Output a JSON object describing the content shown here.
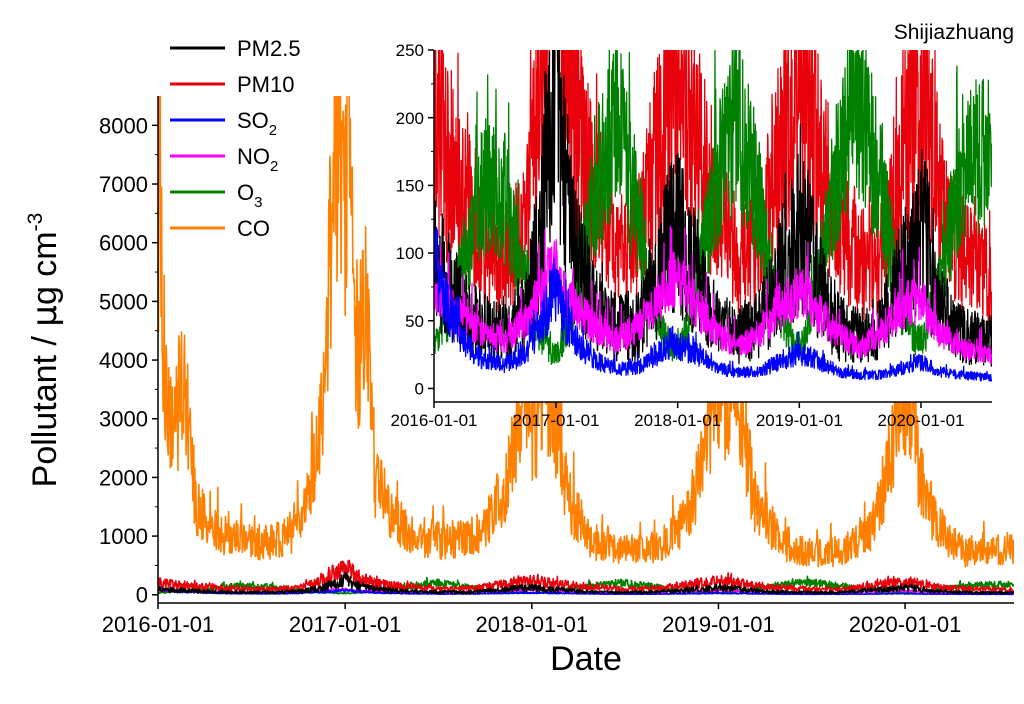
{
  "chart_data": [
    {
      "type": "line",
      "title": "Shijiazhuang",
      "xlabel": "Date",
      "ylabel": {
        "main": "Pollutant  / ",
        "mu": "μ",
        "unit": "g cm",
        "sup": "-3"
      },
      "xlim": [
        "2016-01-01",
        "2020-08-01"
      ],
      "ylim": [
        0,
        8500
      ],
      "xticks": [
        "2016-01-01",
        "2017-01-01",
        "2018-01-01",
        "2019-01-01",
        "2020-01-01"
      ],
      "yticks": [
        0,
        1000,
        2000,
        3000,
        4000,
        5000,
        6000,
        7000,
        8000
      ],
      "grid": false,
      "legend": "top-left",
      "series": [
        {
          "name": "PM2.5",
          "label": {
            "base": "PM2.5",
            "sub": ""
          },
          "color": "#000000",
          "points": [
            [
              "2016-01-01",
              95
            ],
            [
              "2016-02-15",
              75
            ],
            [
              "2016-04-01",
              55
            ],
            [
              "2016-06-01",
              45
            ],
            [
              "2016-08-01",
              40
            ],
            [
              "2016-10-01",
              55
            ],
            [
              "2016-11-15",
              110
            ],
            [
              "2016-12-20",
              230
            ],
            [
              "2017-01-01",
              260
            ],
            [
              "2017-01-20",
              180
            ],
            [
              "2017-03-01",
              95
            ],
            [
              "2017-05-01",
              60
            ],
            [
              "2017-07-01",
              45
            ],
            [
              "2017-09-01",
              45
            ],
            [
              "2017-11-01",
              80
            ],
            [
              "2017-12-15",
              120
            ],
            [
              "2018-01-15",
              110
            ],
            [
              "2018-03-01",
              80
            ],
            [
              "2018-05-01",
              50
            ],
            [
              "2018-07-01",
              40
            ],
            [
              "2018-09-01",
              45
            ],
            [
              "2018-11-01",
              85
            ],
            [
              "2018-12-20",
              110
            ],
            [
              "2019-01-15",
              120
            ],
            [
              "2019-03-01",
              75
            ],
            [
              "2019-05-01",
              45
            ],
            [
              "2019-07-01",
              40
            ],
            [
              "2019-09-01",
              45
            ],
            [
              "2019-11-01",
              80
            ],
            [
              "2019-12-20",
              105
            ],
            [
              "2020-01-15",
              110
            ],
            [
              "2020-03-01",
              60
            ],
            [
              "2020-05-01",
              40
            ],
            [
              "2020-07-31",
              35
            ]
          ]
        },
        {
          "name": "PM10",
          "label": {
            "base": "PM10",
            "sub": ""
          },
          "color": "#e8000b",
          "points": [
            [
              "2016-01-01",
              210
            ],
            [
              "2016-02-15",
              160
            ],
            [
              "2016-04-01",
              140
            ],
            [
              "2016-06-01",
              110
            ],
            [
              "2016-08-01",
              90
            ],
            [
              "2016-10-01",
              120
            ],
            [
              "2016-11-15",
              220
            ],
            [
              "2016-12-20",
              420
            ],
            [
              "2017-01-01",
              480
            ],
            [
              "2017-01-20",
              320
            ],
            [
              "2017-03-01",
              190
            ],
            [
              "2017-05-01",
              140
            ],
            [
              "2017-07-01",
              100
            ],
            [
              "2017-09-01",
              110
            ],
            [
              "2017-11-01",
              170
            ],
            [
              "2017-12-15",
              240
            ],
            [
              "2018-01-15",
              220
            ],
            [
              "2018-03-01",
              180
            ],
            [
              "2018-05-01",
              130
            ],
            [
              "2018-07-01",
              95
            ],
            [
              "2018-09-01",
              100
            ],
            [
              "2018-11-01",
              170
            ],
            [
              "2018-12-20",
              220
            ],
            [
              "2019-01-15",
              230
            ],
            [
              "2019-03-01",
              170
            ],
            [
              "2019-05-01",
              120
            ],
            [
              "2019-07-01",
              90
            ],
            [
              "2019-09-01",
              100
            ],
            [
              "2019-11-01",
              160
            ],
            [
              "2019-12-20",
              210
            ],
            [
              "2020-01-15",
              220
            ],
            [
              "2020-03-01",
              130
            ],
            [
              "2020-05-01",
              100
            ],
            [
              "2020-07-31",
              80
            ]
          ]
        },
        {
          "name": "SO2",
          "label": {
            "base": "SO",
            "sub": "2"
          },
          "color": "#0000ff",
          "points": [
            [
              "2016-01-01",
              95
            ],
            [
              "2016-02-15",
              60
            ],
            [
              "2016-04-01",
              35
            ],
            [
              "2016-06-01",
              20
            ],
            [
              "2016-08-01",
              18
            ],
            [
              "2016-10-01",
              25
            ],
            [
              "2016-11-15",
              45
            ],
            [
              "2016-12-20",
              70
            ],
            [
              "2017-01-01",
              75
            ],
            [
              "2017-01-20",
              55
            ],
            [
              "2017-03-01",
              35
            ],
            [
              "2017-05-01",
              20
            ],
            [
              "2017-07-01",
              15
            ],
            [
              "2017-09-01",
              15
            ],
            [
              "2017-11-01",
              25
            ],
            [
              "2017-12-15",
              35
            ],
            [
              "2018-01-15",
              30
            ],
            [
              "2018-03-01",
              25
            ],
            [
              "2018-05-01",
              15
            ],
            [
              "2018-07-01",
              12
            ],
            [
              "2018-09-01",
              12
            ],
            [
              "2018-11-01",
              20
            ],
            [
              "2018-12-20",
              25
            ],
            [
              "2019-01-15",
              25
            ],
            [
              "2019-03-01",
              20
            ],
            [
              "2019-05-01",
              12
            ],
            [
              "2019-07-01",
              10
            ],
            [
              "2019-09-01",
              10
            ],
            [
              "2019-11-01",
              15
            ],
            [
              "2019-12-20",
              20
            ],
            [
              "2020-01-15",
              18
            ],
            [
              "2020-03-01",
              12
            ],
            [
              "2020-05-01",
              10
            ],
            [
              "2020-07-31",
              8
            ]
          ]
        },
        {
          "name": "NO2",
          "label": {
            "base": "NO",
            "sub": "2"
          },
          "color": "#ff00ff",
          "points": [
            [
              "2016-01-01",
              80
            ],
            [
              "2016-02-15",
              60
            ],
            [
              "2016-04-01",
              50
            ],
            [
              "2016-06-01",
              40
            ],
            [
              "2016-08-01",
              35
            ],
            [
              "2016-10-01",
              50
            ],
            [
              "2016-11-15",
              70
            ],
            [
              "2016-12-20",
              85
            ],
            [
              "2017-01-01",
              90
            ],
            [
              "2017-01-20",
              70
            ],
            [
              "2017-03-01",
              60
            ],
            [
              "2017-05-01",
              45
            ],
            [
              "2017-07-01",
              35
            ],
            [
              "2017-09-01",
              45
            ],
            [
              "2017-11-01",
              65
            ],
            [
              "2017-12-15",
              80
            ],
            [
              "2018-01-15",
              75
            ],
            [
              "2018-03-01",
              60
            ],
            [
              "2018-05-01",
              40
            ],
            [
              "2018-07-01",
              30
            ],
            [
              "2018-09-01",
              40
            ],
            [
              "2018-11-01",
              60
            ],
            [
              "2018-12-20",
              70
            ],
            [
              "2019-01-15",
              70
            ],
            [
              "2019-03-01",
              55
            ],
            [
              "2019-05-01",
              40
            ],
            [
              "2019-07-01",
              30
            ],
            [
              "2019-09-01",
              40
            ],
            [
              "2019-11-01",
              60
            ],
            [
              "2019-12-20",
              65
            ],
            [
              "2020-01-15",
              60
            ],
            [
              "2020-03-01",
              40
            ],
            [
              "2020-05-01",
              30
            ],
            [
              "2020-07-31",
              25
            ]
          ]
        },
        {
          "name": "O3",
          "label": {
            "base": "O",
            "sub": "3"
          },
          "color": "#008000",
          "points": [
            [
              "2016-01-01",
              35
            ],
            [
              "2016-02-15",
              55
            ],
            [
              "2016-04-01",
              95
            ],
            [
              "2016-06-01",
              150
            ],
            [
              "2016-08-01",
              140
            ],
            [
              "2016-10-01",
              80
            ],
            [
              "2016-11-15",
              40
            ],
            [
              "2016-12-20",
              25
            ],
            [
              "2017-01-01",
              25
            ],
            [
              "2017-01-20",
              35
            ],
            [
              "2017-03-01",
              70
            ],
            [
              "2017-05-01",
              150
            ],
            [
              "2017-07-01",
              200
            ],
            [
              "2017-09-01",
              130
            ],
            [
              "2017-11-01",
              50
            ],
            [
              "2017-12-15",
              30
            ],
            [
              "2018-01-15",
              35
            ],
            [
              "2018-03-01",
              75
            ],
            [
              "2018-05-01",
              160
            ],
            [
              "2018-07-01",
              200
            ],
            [
              "2018-09-01",
              140
            ],
            [
              "2018-11-01",
              55
            ],
            [
              "2018-12-20",
              30
            ],
            [
              "2019-01-15",
              35
            ],
            [
              "2019-03-01",
              80
            ],
            [
              "2019-05-01",
              170
            ],
            [
              "2019-07-01",
              210
            ],
            [
              "2019-09-01",
              150
            ],
            [
              "2019-11-01",
              60
            ],
            [
              "2019-12-20",
              35
            ],
            [
              "2020-01-15",
              40
            ],
            [
              "2020-03-01",
              85
            ],
            [
              "2020-05-01",
              160
            ],
            [
              "2020-07-31",
              180
            ]
          ]
        },
        {
          "name": "CO",
          "label": {
            "base": "CO",
            "sub": ""
          },
          "color": "#ff8000",
          "points": [
            [
              "2016-01-01",
              3500
            ],
            [
              "2016-01-05",
              7600
            ],
            [
              "2016-01-12",
              4000
            ],
            [
              "2016-02-01",
              2600
            ],
            [
              "2016-02-20",
              3900
            ],
            [
              "2016-03-15",
              1500
            ],
            [
              "2016-04-15",
              1150
            ],
            [
              "2016-06-01",
              950
            ],
            [
              "2016-08-01",
              900
            ],
            [
              "2016-09-15",
              1050
            ],
            [
              "2016-10-15",
              1400
            ],
            [
              "2016-11-15",
              2800
            ],
            [
              "2016-12-10",
              7100
            ],
            [
              "2016-12-22",
              8500
            ],
            [
              "2016-12-28",
              6500
            ],
            [
              "2017-01-06",
              8300
            ],
            [
              "2017-01-20",
              4100
            ],
            [
              "2017-02-10",
              4900
            ],
            [
              "2017-03-01",
              2000
            ],
            [
              "2017-04-01",
              1300
            ],
            [
              "2017-06-01",
              950
            ],
            [
              "2017-08-01",
              900
            ],
            [
              "2017-10-01",
              1100
            ],
            [
              "2017-11-20",
              2100
            ],
            [
              "2017-12-20",
              3600
            ],
            [
              "2018-01-10",
              2600
            ],
            [
              "2018-01-25",
              3900
            ],
            [
              "2018-02-15",
              3100
            ],
            [
              "2018-03-15",
              1600
            ],
            [
              "2018-05-01",
              900
            ],
            [
              "2018-07-01",
              750
            ],
            [
              "2018-09-01",
              800
            ],
            [
              "2018-11-01",
              1300
            ],
            [
              "2018-12-10",
              2400
            ],
            [
              "2018-12-28",
              3800
            ],
            [
              "2019-01-15",
              2900
            ],
            [
              "2019-02-10",
              3600
            ],
            [
              "2019-03-10",
              1700
            ],
            [
              "2019-05-01",
              900
            ],
            [
              "2019-07-01",
              700
            ],
            [
              "2019-09-01",
              750
            ],
            [
              "2019-11-01",
              1200
            ],
            [
              "2019-12-10",
              2600
            ],
            [
              "2019-12-25",
              3700
            ],
            [
              "2020-01-10",
              3300
            ],
            [
              "2020-01-25",
              2300
            ],
            [
              "2020-03-01",
              1200
            ],
            [
              "2020-05-01",
              700
            ],
            [
              "2020-07-31",
              800
            ]
          ]
        }
      ]
    },
    {
      "type": "line",
      "title": "",
      "xlabel": "",
      "ylabel": "",
      "xlim": [
        "2016-01-01",
        "2020-08-01"
      ],
      "ylim": [
        -10,
        250
      ],
      "xticks": [
        "2016-01-01",
        "2017-01-01",
        "2018-01-01",
        "2019-01-01",
        "2020-01-01"
      ],
      "yticks": [
        0,
        50,
        100,
        150,
        200,
        250
      ],
      "grid": false,
      "note": "inset zoom of the same series, y-axis clipped at 250"
    }
  ]
}
